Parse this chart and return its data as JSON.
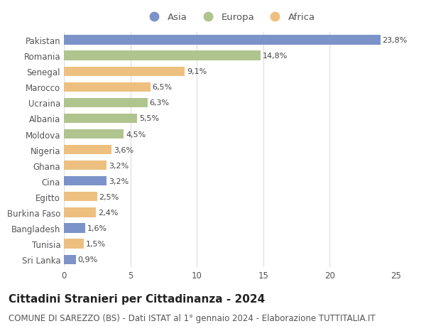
{
  "categories": [
    "Pakistan",
    "Romania",
    "Senegal",
    "Marocco",
    "Ucraina",
    "Albania",
    "Moldova",
    "Nigeria",
    "Ghana",
    "Cina",
    "Egitto",
    "Burkina Faso",
    "Bangladesh",
    "Tunisia",
    "Sri Lanka"
  ],
  "values": [
    23.8,
    14.8,
    9.1,
    6.5,
    6.3,
    5.5,
    4.5,
    3.6,
    3.2,
    3.2,
    2.5,
    2.4,
    1.6,
    1.5,
    0.9
  ],
  "continents": [
    "Asia",
    "Europa",
    "Africa",
    "Africa",
    "Europa",
    "Europa",
    "Europa",
    "Africa",
    "Africa",
    "Asia",
    "Africa",
    "Africa",
    "Asia",
    "Africa",
    "Asia"
  ],
  "colors": {
    "Asia": "#7b93c8",
    "Europa": "#b0c48e",
    "Africa": "#edc080"
  },
  "legend_order": [
    "Asia",
    "Europa",
    "Africa"
  ],
  "title": "Cittadini Stranieri per Cittadinanza - 2024",
  "subtitle": "COMUNE DI SAREZZO (BS) - Dati ISTAT al 1° gennaio 2024 - Elaborazione TUTTITALIA.IT",
  "xlim": [
    0,
    25
  ],
  "xticks": [
    0,
    5,
    10,
    15,
    20,
    25
  ],
  "background_color": "#ffffff",
  "grid_color": "#dddddd",
  "bar_height": 0.6,
  "title_fontsize": 11,
  "subtitle_fontsize": 8.5,
  "label_fontsize": 8,
  "tick_fontsize": 8.5,
  "legend_fontsize": 9.5
}
